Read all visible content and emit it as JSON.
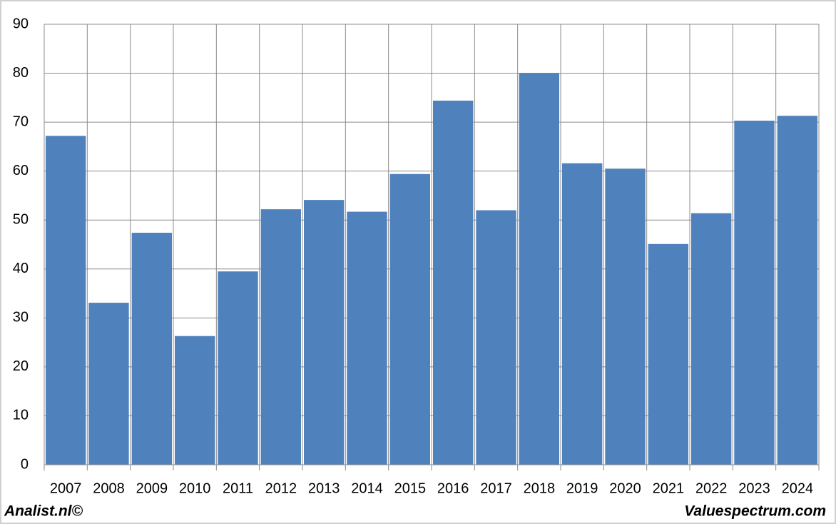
{
  "chart_data": {
    "type": "bar",
    "categories": [
      "2007",
      "2008",
      "2009",
      "2010",
      "2011",
      "2012",
      "2013",
      "2014",
      "2015",
      "2016",
      "2017",
      "2018",
      "2019",
      "2020",
      "2021",
      "2022",
      "2023",
      "2024"
    ],
    "values": [
      67.2,
      33.1,
      47.4,
      26.3,
      39.5,
      52.2,
      54.1,
      51.7,
      59.4,
      74.4,
      52.0,
      80.0,
      61.6,
      60.5,
      45.1,
      51.4,
      70.3,
      71.3
    ],
    "color": "#4f81bd",
    "ylim": [
      0,
      90
    ],
    "yticks": [
      0,
      10,
      20,
      30,
      40,
      50,
      60,
      70,
      80,
      90
    ],
    "grid": true,
    "footer_left": "Analist.nl©",
    "footer_right": "Valuespectrum.com"
  }
}
